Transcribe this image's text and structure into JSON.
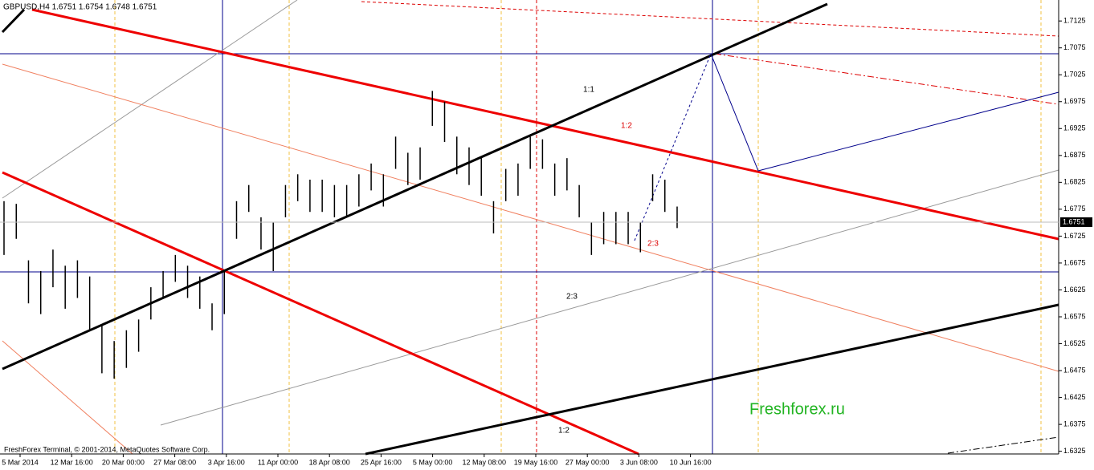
{
  "chart_data": {
    "type": "ohlc",
    "header": "GBPUSD,H4  1.6751 1.6754 1.6748 1.6751",
    "footer": "FreshForex Terminal, © 2001-2014, MetaQuotes Software Corp.",
    "watermark": "Freshforex.ru",
    "annotations": [
      "1:1",
      "1:2",
      "2:3",
      "2:3",
      "1:2"
    ],
    "categories": [
      "5 Mar 2014",
      "12 Mar 16:00",
      "20 Mar 00:00",
      "27 Mar 08:00",
      "3 Apr 16:00",
      "11 Apr 00:00",
      "18 Apr 08:00",
      "25 Apr 16:00",
      "5 May 00:00",
      "12 May 08:00",
      "19 May 16:00",
      "27 May 00:00",
      "3 Jun 08:00",
      "10 Jun 16:00"
    ],
    "high": [
      1.679,
      1.6785,
      1.668,
      1.666,
      1.67,
      1.667,
      1.668,
      1.665,
      1.656,
      1.653,
      1.655,
      1.657,
      1.663,
      1.666,
      1.669,
      1.667,
      1.665,
      1.66,
      1.666,
      1.679,
      1.682,
      1.676,
      1.675,
      1.682,
      1.684,
      1.683,
      1.683,
      1.682,
      1.682,
      1.684,
      1.686,
      1.684,
      1.691,
      1.688,
      1.689,
      1.6995,
      1.6975,
      1.691,
      1.689,
      1.687,
      1.679,
      1.685,
      1.686,
      1.691,
      1.6905,
      1.686,
      1.687,
      1.682,
      1.675,
      1.677,
      1.677,
      1.677,
      1.675,
      1.684,
      1.683,
      1.678
    ],
    "low": [
      1.669,
      1.672,
      1.66,
      1.658,
      1.663,
      1.659,
      1.661,
      1.655,
      1.647,
      1.646,
      1.648,
      1.651,
      1.657,
      1.661,
      1.664,
      1.661,
      1.659,
      1.655,
      1.658,
      1.672,
      1.677,
      1.67,
      1.666,
      1.676,
      1.679,
      1.677,
      1.677,
      1.676,
      1.676,
      1.678,
      1.681,
      1.678,
      1.685,
      1.682,
      1.683,
      1.693,
      1.69,
      1.684,
      1.682,
      1.68,
      1.673,
      1.679,
      1.68,
      1.685,
      1.685,
      1.68,
      1.681,
      1.676,
      1.669,
      1.671,
      1.671,
      1.671,
      1.6695,
      1.679,
      1.677,
      1.674
    ],
    "last_price": 1.6751,
    "ylim": [
      1.632,
      1.7164
    ],
    "yticks": [
      1.7125,
      1.7075,
      1.7025,
      1.6975,
      1.6925,
      1.6875,
      1.6825,
      1.6775,
      1.6725,
      1.6675,
      1.6625,
      1.6575,
      1.6525,
      1.6475,
      1.6425,
      1.6375,
      1.6325
    ],
    "color": "#000000"
  }
}
